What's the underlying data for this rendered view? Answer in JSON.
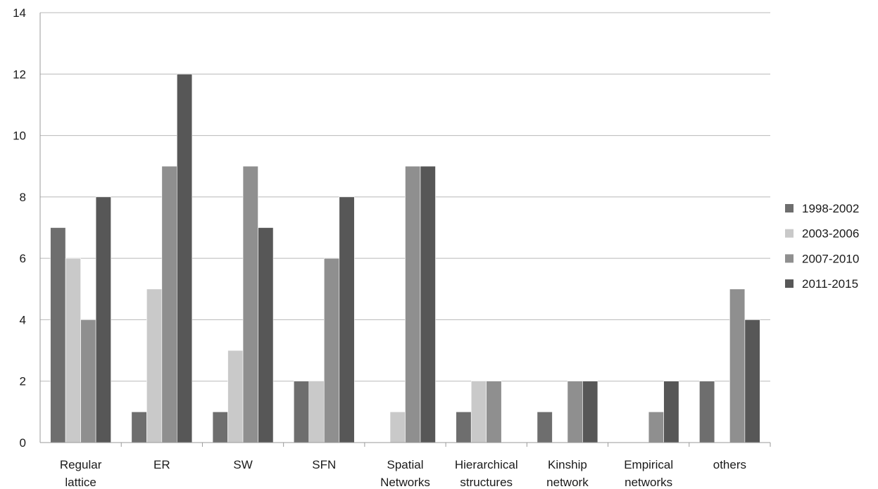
{
  "chart_data": {
    "type": "bar",
    "categories": [
      [
        "Regular",
        "lattice"
      ],
      [
        "ER"
      ],
      [
        "SW"
      ],
      [
        "SFN"
      ],
      [
        "Spatial",
        "Networks"
      ],
      [
        "Hierarchical",
        "structures"
      ],
      [
        "Kinship",
        "network"
      ],
      [
        "Empirical",
        "networks"
      ],
      [
        "others"
      ]
    ],
    "series": [
      {
        "name": "1998-2002",
        "color": "#6e6e6e",
        "values": [
          7,
          1,
          1,
          2,
          0,
          1,
          1,
          0,
          2
        ]
      },
      {
        "name": "2003-2006",
        "color": "#c9c9c9",
        "values": [
          6,
          5,
          3,
          2,
          1,
          2,
          0,
          0,
          0
        ]
      },
      {
        "name": "2007-2010",
        "color": "#8f8f8f",
        "values": [
          4,
          9,
          9,
          6,
          9,
          2,
          2,
          1,
          5
        ]
      },
      {
        "name": "2011-2015",
        "color": "#575757",
        "values": [
          8,
          12,
          7,
          8,
          9,
          0,
          2,
          2,
          4
        ]
      }
    ],
    "title": "",
    "xlabel": "",
    "ylabel": "",
    "ylim": [
      0,
      14
    ],
    "yticks": [
      0,
      2,
      4,
      6,
      8,
      10,
      12,
      14
    ],
    "grid": true,
    "legend_position": "right"
  }
}
